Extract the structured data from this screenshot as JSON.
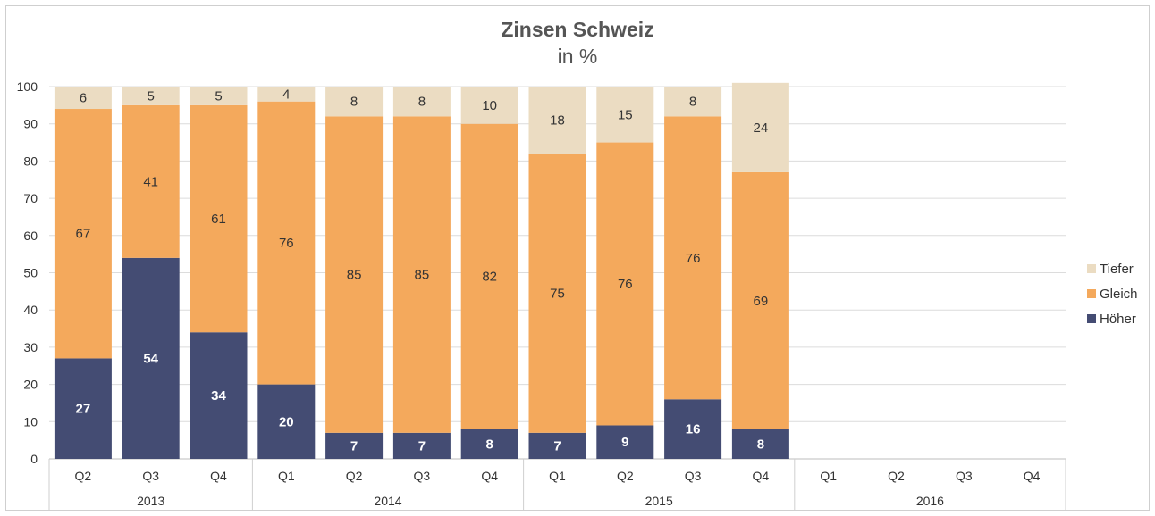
{
  "chart_data": {
    "type": "bar",
    "stacked": true,
    "title": "Zinsen Schweiz",
    "subtitle": "in %",
    "xlabel": "",
    "ylabel": "",
    "ylim": [
      0,
      100
    ],
    "yticks": [
      "0",
      "10",
      "20",
      "30",
      "40",
      "50",
      "60",
      "70",
      "80",
      "90",
      "100"
    ],
    "grid": true,
    "legend_position": "right",
    "colors": {
      "Höher": "#444c73",
      "Gleich": "#f4a95c",
      "Tiefer": "#ebdcc2"
    },
    "categories": [
      "Q2",
      "Q3",
      "Q4",
      "Q1",
      "Q2",
      "Q3",
      "Q4",
      "Q1",
      "Q2",
      "Q3",
      "Q4",
      "Q1",
      "Q2",
      "Q3",
      "Q4"
    ],
    "year_groups": [
      {
        "label": "2013",
        "count": 3
      },
      {
        "label": "2014",
        "count": 4
      },
      {
        "label": "2015",
        "count": 4
      },
      {
        "label": "2016",
        "count": 4
      }
    ],
    "series": [
      {
        "name": "Höher",
        "values": [
          27,
          54,
          34,
          20,
          7,
          7,
          8,
          7,
          9,
          16,
          8,
          null,
          null,
          null,
          null
        ]
      },
      {
        "name": "Gleich",
        "values": [
          67,
          41,
          61,
          76,
          85,
          85,
          82,
          75,
          76,
          76,
          69,
          null,
          null,
          null,
          null
        ]
      },
      {
        "name": "Tiefer",
        "values": [
          6,
          5,
          5,
          4,
          8,
          8,
          10,
          18,
          15,
          8,
          24,
          null,
          null,
          null,
          null
        ]
      }
    ],
    "legend": [
      "Tiefer",
      "Gleich",
      "Höher"
    ]
  }
}
